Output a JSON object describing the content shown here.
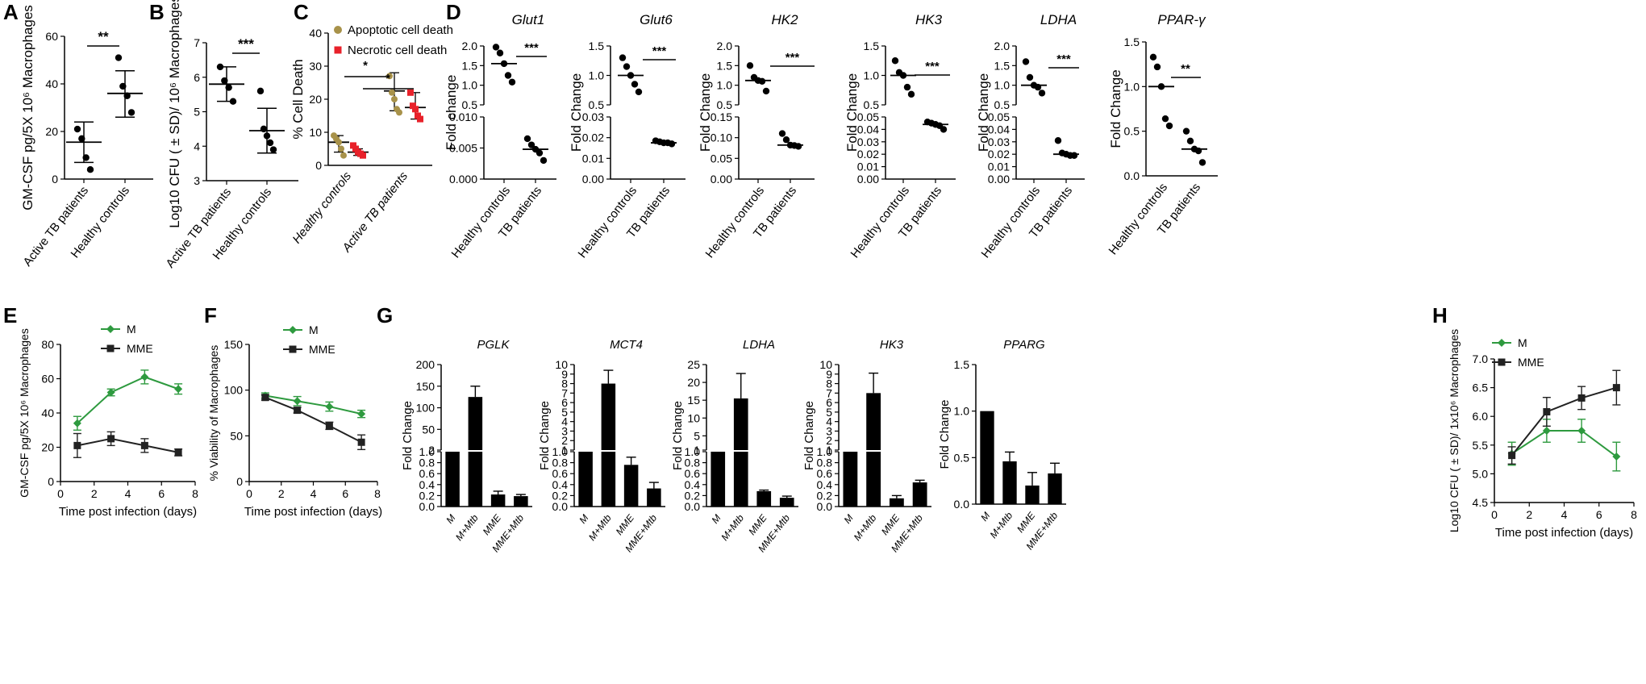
{
  "panel_labels": [
    "A",
    "B",
    "C",
    "D",
    "E",
    "F",
    "G",
    "H"
  ],
  "colors": {
    "black": "#000000",
    "olive": "#a8924a",
    "red": "#e8212a",
    "green": "#2e9a3f",
    "dark": "#222222",
    "sig": "#000000"
  },
  "chart_data": [
    {
      "id": "A",
      "type": "scatter",
      "title": "",
      "ylabel": "GM-CSF pg/5X 10⁶ Macrophages",
      "ylim": [
        0,
        60
      ],
      "yticks": [
        0,
        20,
        40,
        60
      ],
      "categories": [
        "Active TB patients",
        "Healthy controls"
      ],
      "groups": [
        {
          "values": [
            21,
            17,
            9,
            4
          ],
          "mean": 15.5,
          "sd_low": 7,
          "sd_high": 24
        },
        {
          "values": [
            51,
            39,
            35,
            28
          ],
          "mean": 36,
          "sd_low": 26,
          "sd_high": 45.5
        }
      ],
      "significance": "**"
    },
    {
      "id": "B",
      "type": "scatter",
      "title": "",
      "ylabel": "Log10 CFU ( ± SD)/ 10⁶ Macrophages",
      "ylim": [
        3,
        7
      ],
      "yticks": [
        3,
        4,
        5,
        6,
        7
      ],
      "categories": [
        "Active TB patients",
        "Healthy controls"
      ],
      "groups": [
        {
          "values": [
            6.3,
            5.9,
            5.7,
            5.3
          ],
          "mean": 5.8,
          "sd_low": 5.3,
          "sd_high": 6.3
        },
        {
          "values": [
            5.6,
            4.5,
            4.3,
            4.1,
            3.9
          ],
          "mean": 4.45,
          "sd_low": 3.8,
          "sd_high": 5.1
        }
      ],
      "significance": "***"
    },
    {
      "id": "C",
      "type": "scatter",
      "title": "",
      "ylabel": "% Cell Death",
      "ylim": [
        0,
        40
      ],
      "yticks": [
        0,
        10,
        20,
        30,
        40
      ],
      "categories": [
        "Healthy controls",
        "Active TB patients"
      ],
      "legend": [
        "Apoptotic cell death",
        "Necrotic cell death"
      ],
      "series": [
        {
          "name": "Apoptotic cell death",
          "groups": [
            {
              "values": [
                9,
                8,
                7,
                5,
                3
              ],
              "mean": 7,
              "sd_low": 4,
              "sd_high": 9
            },
            {
              "values": [
                27,
                22,
                20,
                17,
                16
              ],
              "mean": 22.5,
              "sd_low": 16.5,
              "sd_high": 28
            }
          ]
        },
        {
          "name": "Necrotic cell death",
          "groups": [
            {
              "values": [
                6,
                5,
                4,
                3.5,
                3
              ],
              "mean": 4,
              "sd_low": 3,
              "sd_high": 5
            },
            {
              "values": [
                22,
                18,
                17,
                15,
                14
              ],
              "mean": 17.5,
              "sd_low": 14,
              "sd_high": 22
            }
          ]
        }
      ],
      "significance": [
        "*",
        "*"
      ]
    },
    {
      "id": "D1",
      "type": "scatter",
      "title": "Glut1",
      "ylabel": "Fold change",
      "categories": [
        "Healthy controls",
        "TB patients"
      ],
      "upper": {
        "ylim": [
          0.5,
          2.0
        ],
        "yticks": [
          "0.5",
          "1.0",
          "1.5",
          "2.0"
        ],
        "values": [
          1.97,
          1.82,
          1.55,
          1.25,
          1.08
        ],
        "mean": 1.55
      },
      "lower": {
        "ylim": [
          0,
          0.01
        ],
        "yticks": [
          "0.000",
          "0.005",
          "0.010"
        ],
        "values": [
          0.0065,
          0.0055,
          0.0048,
          0.0042,
          0.003
        ],
        "mean": 0.0048
      },
      "significance": "***"
    },
    {
      "id": "D2",
      "type": "scatter",
      "title": "Glut6",
      "ylabel": "Fold Change",
      "categories": [
        "Healthy controls",
        "TB patients"
      ],
      "upper": {
        "ylim": [
          0.5,
          1.5
        ],
        "yticks": [
          "0.5",
          "1.0",
          "1.5"
        ],
        "values": [
          1.3,
          1.15,
          1.0,
          0.85,
          0.72
        ],
        "mean": 1.0
      },
      "lower": {
        "ylim": [
          0,
          0.03
        ],
        "yticks": [
          "0.00",
          "0.01",
          "0.02",
          "0.03"
        ],
        "values": [
          0.0185,
          0.018,
          0.0175,
          0.0175,
          0.017
        ],
        "mean": 0.0175
      },
      "significance": "***"
    },
    {
      "id": "D3",
      "type": "scatter",
      "title": "HK2",
      "ylabel": "Fold Change",
      "categories": [
        "Healthy controls",
        "TB patients"
      ],
      "upper": {
        "ylim": [
          0.5,
          2.0
        ],
        "yticks": [
          "0.5",
          "1.0",
          "1.5",
          "2.0"
        ],
        "values": [
          1.5,
          1.2,
          1.12,
          1.1,
          0.85
        ],
        "mean": 1.12
      },
      "lower": {
        "ylim": [
          0,
          0.15
        ],
        "yticks": [
          "0.00",
          "0.05",
          "0.10",
          "0.15"
        ],
        "values": [
          0.11,
          0.095,
          0.082,
          0.081,
          0.079
        ],
        "mean": 0.082
      },
      "significance": "***"
    },
    {
      "id": "D4",
      "type": "scatter",
      "title": "HK3",
      "ylabel": "Fold Change",
      "categories": [
        "Healthy controls",
        "TB patients"
      ],
      "upper": {
        "ylim": [
          0.5,
          1.5
        ],
        "yticks": [
          "0.5",
          "1.0",
          "1.5"
        ],
        "values": [
          1.25,
          1.05,
          1.0,
          0.8,
          0.68
        ],
        "mean": 1.0
      },
      "lower": {
        "ylim": [
          0,
          0.05
        ],
        "yticks": [
          "0.00",
          "0.01",
          "0.02",
          "0.03",
          "0.04",
          "0.05"
        ],
        "values": [
          0.046,
          0.045,
          0.044,
          0.043,
          0.04
        ],
        "mean": 0.044
      },
      "significance": "***"
    },
    {
      "id": "D5",
      "type": "scatter",
      "title": "LDHA",
      "ylabel": "Fold Change",
      "categories": [
        "Healthy controls",
        "TB patients"
      ],
      "upper": {
        "ylim": [
          0.5,
          2.0
        ],
        "yticks": [
          "0.5",
          "1.0",
          "1.5",
          "2.0"
        ],
        "values": [
          1.6,
          1.2,
          1.0,
          0.95,
          0.8
        ],
        "mean": 1.0
      },
      "lower": {
        "ylim": [
          0,
          0.05
        ],
        "yticks": [
          "0.00",
          "0.01",
          "0.02",
          "0.03",
          "0.04",
          "0.05"
        ],
        "values": [
          0.031,
          0.021,
          0.02,
          0.019,
          0.019
        ],
        "mean": 0.02
      },
      "significance": "***"
    },
    {
      "id": "D6",
      "type": "scatter",
      "title": "PPAR-γ",
      "ylabel": "Fold Change",
      "categories": [
        "Healthy controls",
        "TB patients"
      ],
      "ylim": [
        0,
        1.5
      ],
      "yticks": [
        "0.0",
        "0.5",
        "1.0",
        "1.5"
      ],
      "values_a": [
        1.33,
        1.22,
        1.0,
        0.64,
        0.56
      ],
      "mean_a": 1.0,
      "values_b": [
        0.5,
        0.39,
        0.3,
        0.28,
        0.15
      ],
      "mean_b": 0.3,
      "significance": "**"
    },
    {
      "id": "E",
      "type": "line",
      "xlabel": "Time post infection (days)",
      "ylabel": "GM-CSF pg/5X 10⁶ Macrophages",
      "xlim": [
        0,
        8
      ],
      "ylim": [
        0,
        80
      ],
      "xticks": [
        0,
        2,
        4,
        6,
        8
      ],
      "yticks": [
        0,
        20,
        40,
        60,
        80
      ],
      "x": [
        1,
        3,
        5,
        7
      ],
      "series": [
        {
          "name": "M",
          "values": [
            34,
            52,
            61,
            54
          ],
          "err": [
            4,
            2,
            4,
            3
          ]
        },
        {
          "name": "MME",
          "values": [
            21,
            25,
            21,
            17
          ],
          "err": [
            7,
            4,
            4,
            2
          ]
        }
      ]
    },
    {
      "id": "F",
      "type": "line",
      "xlabel": "Time post infection (days)",
      "ylabel": "% Viability of Macrophages",
      "xlim": [
        0,
        8
      ],
      "ylim": [
        0,
        150
      ],
      "xticks": [
        0,
        2,
        4,
        6,
        8
      ],
      "yticks": [
        0,
        50,
        100,
        150
      ],
      "x": [
        1,
        3,
        5,
        7
      ],
      "series": [
        {
          "name": "M",
          "values": [
            94,
            88,
            82,
            74
          ],
          "err": [
            3,
            5,
            5,
            4
          ]
        },
        {
          "name": "MME",
          "values": [
            92,
            78,
            61,
            43
          ],
          "err": [
            3,
            3,
            4,
            8
          ]
        }
      ]
    },
    {
      "id": "G1",
      "type": "bar",
      "title": "PGLK",
      "ylabel": "Fold Change",
      "categories": [
        "M",
        "M+Mtb",
        "MME",
        "MME+Mtb"
      ],
      "values": [
        1.0,
        125,
        0.22,
        0.19
      ],
      "err": [
        0,
        25,
        0.06,
        0.03
      ],
      "upper_ticks": [
        "2",
        "50",
        "100",
        "150",
        "200"
      ],
      "upper_lim": [
        2,
        200
      ],
      "lower_ticks": [
        "0.0",
        "0.2",
        "0.4",
        "0.6",
        "0.8",
        "1.0"
      ]
    },
    {
      "id": "G2",
      "type": "bar",
      "title": "MCT4",
      "ylabel": "Fold Change",
      "categories": [
        "M",
        "M+Mtb",
        "MME",
        "MME+Mtb"
      ],
      "values": [
        1.0,
        8.0,
        0.76,
        0.33
      ],
      "err": [
        0,
        1.4,
        0.14,
        0.11
      ],
      "upper_ticks": [
        "1",
        "2",
        "3",
        "4",
        "5",
        "6",
        "7",
        "8",
        "9",
        "10"
      ],
      "upper_lim": [
        1,
        10
      ],
      "lower_ticks": [
        "0.0",
        "0.2",
        "0.4",
        "0.6",
        "0.8",
        "1.0"
      ]
    },
    {
      "id": "G3",
      "type": "bar",
      "title": "LDHA",
      "ylabel": "Fold Change",
      "categories": [
        "M",
        "M+Mtb",
        "MME",
        "MME+Mtb"
      ],
      "values": [
        1.0,
        15.5,
        0.28,
        0.16
      ],
      "err": [
        0,
        7,
        0.02,
        0.03
      ],
      "upper_ticks": [
        "1",
        "5",
        "10",
        "15",
        "20",
        "25"
      ],
      "upper_lim": [
        1,
        25
      ],
      "lower_ticks": [
        "0.0",
        "0.2",
        "0.4",
        "0.6",
        "0.8",
        "1.0"
      ]
    },
    {
      "id": "G4",
      "type": "bar",
      "title": "HK3",
      "ylabel": "Fold Change",
      "categories": [
        "M",
        "M+Mtb",
        "MME",
        "MME+Mtb"
      ],
      "values": [
        1.0,
        7.0,
        0.15,
        0.44
      ],
      "err": [
        0,
        2.1,
        0.05,
        0.04
      ],
      "upper_ticks": [
        "1",
        "2",
        "3",
        "4",
        "5",
        "6",
        "7",
        "8",
        "9",
        "10"
      ],
      "upper_lim": [
        1,
        10
      ],
      "lower_ticks": [
        "0.0",
        "0.2",
        "0.4",
        "0.6",
        "0.8",
        "1.0"
      ]
    },
    {
      "id": "G5",
      "type": "bar",
      "title": "PPARG",
      "ylabel": "Fold Change",
      "categories": [
        "M",
        "M+Mtb",
        "MME",
        "MME+Mtb"
      ],
      "values": [
        1.0,
        0.46,
        0.2,
        0.33
      ],
      "err": [
        0,
        0.1,
        0.14,
        0.11
      ],
      "ylim": [
        0,
        1.5
      ],
      "yticks": [
        "0.0",
        "0.5",
        "1.0",
        "1.5"
      ]
    },
    {
      "id": "H",
      "type": "line",
      "xlabel": "Time post infection (days)",
      "ylabel": "Log10 CFU ( ± SD)/ 1x10⁶ Macrophages",
      "xlim": [
        0,
        8
      ],
      "ylim": [
        4.5,
        7.0
      ],
      "xticks": [
        0,
        2,
        4,
        6,
        8
      ],
      "yticks": [
        "4.5",
        "5.0",
        "5.5",
        "6.0",
        "6.5",
        "7.0"
      ],
      "x": [
        1,
        3,
        5,
        7
      ],
      "series": [
        {
          "name": "M",
          "values": [
            5.35,
            5.75,
            5.75,
            5.3
          ],
          "err": [
            0.2,
            0.2,
            0.2,
            0.25
          ]
        },
        {
          "name": "MME",
          "values": [
            5.32,
            6.08,
            6.32,
            6.5
          ],
          "err": [
            0.15,
            0.25,
            0.2,
            0.3
          ]
        }
      ]
    }
  ]
}
